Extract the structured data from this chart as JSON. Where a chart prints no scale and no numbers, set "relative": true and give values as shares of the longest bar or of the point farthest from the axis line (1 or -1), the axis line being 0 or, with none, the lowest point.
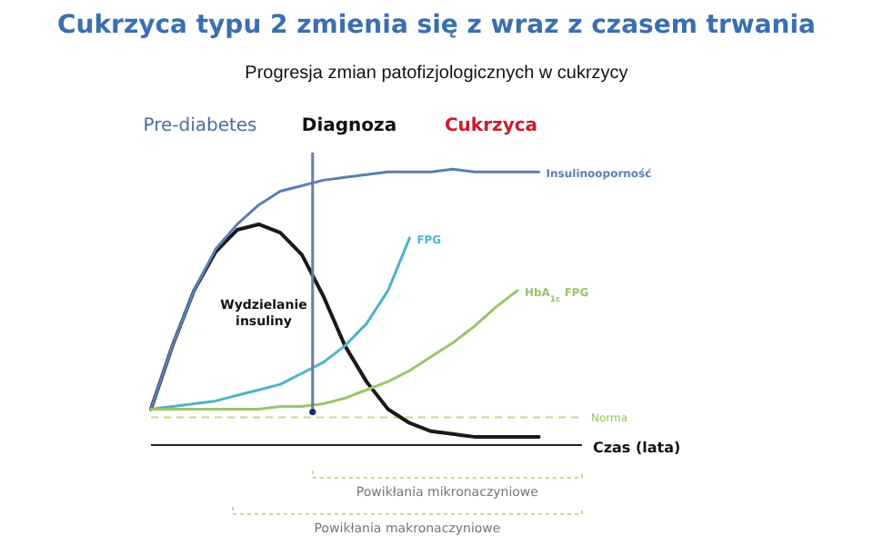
{
  "chart_data": {
    "type": "line",
    "title": "Cukrzyca typu 2 zmienia się z wraz z czasem trwania",
    "subtitle": "Progresja zmian patofizjologicznych w cukrzycy",
    "xlabel": "Czas (lata)",
    "relative": true,
    "tick_labels": false,
    "grid": false,
    "legend": false,
    "marker": "none",
    "line_style": "solid",
    "categories": [
      null,
      null,
      null,
      null,
      null,
      null,
      null,
      null,
      null,
      null,
      null,
      null,
      null,
      null,
      null,
      null,
      null,
      null,
      null,
      null,
      null
    ],
    "series": [
      {
        "color": "#1a1a1a",
        "values": [
          0.13,
          0.36,
          0.56,
          0.7,
          0.78,
          0.8,
          0.77,
          0.69,
          0.54,
          0.36,
          0.23,
          0.13,
          0.08,
          0.05,
          0.04,
          0.03,
          0.03,
          0.03,
          0.03,
          null,
          null
        ]
      },
      {
        "name": "Insulinooporność",
        "color": "#5b7fb5",
        "values": [
          0.13,
          0.36,
          0.56,
          0.71,
          0.8,
          0.87,
          0.92,
          0.94,
          0.96,
          0.97,
          0.98,
          0.99,
          0.99,
          0.99,
          1,
          0.99,
          0.99,
          0.99,
          0.99,
          null,
          null
        ]
      },
      {
        "name": "FPG",
        "color": "#4fb3c8",
        "values": [
          0.13,
          0.14,
          0.15,
          0.16,
          0.18,
          0.2,
          0.22,
          0.26,
          0.3,
          0.36,
          0.44,
          0.56,
          0.75,
          null,
          null,
          null,
          null,
          null,
          null,
          null,
          null
        ]
      },
      {
        "name": "HbA$_{1c}$ FPG",
        "color": "#9cc46a",
        "values": [
          0.13,
          0.13,
          0.13,
          0.13,
          0.13,
          0.13,
          0.14,
          0.14,
          0.15,
          0.17,
          0.2,
          0.23,
          0.27,
          0.32,
          0.37,
          0.43,
          0.5,
          0.56,
          null,
          null,
          null
        ]
      }
    ],
    "ref_lines": [
      {
        "axis": "y",
        "value": 0.1,
        "label": "Norma",
        "color": "#c8d98a",
        "line_style": "dashed"
      }
    ],
    "annotations": [
      "Pre-diabetes",
      "Diagnoza",
      "Cukrzyca",
      "Wydzielanie insuliny",
      "Powikłania mikronaczyniowe",
      "Powikłania makronaczyniowe"
    ]
  }
}
